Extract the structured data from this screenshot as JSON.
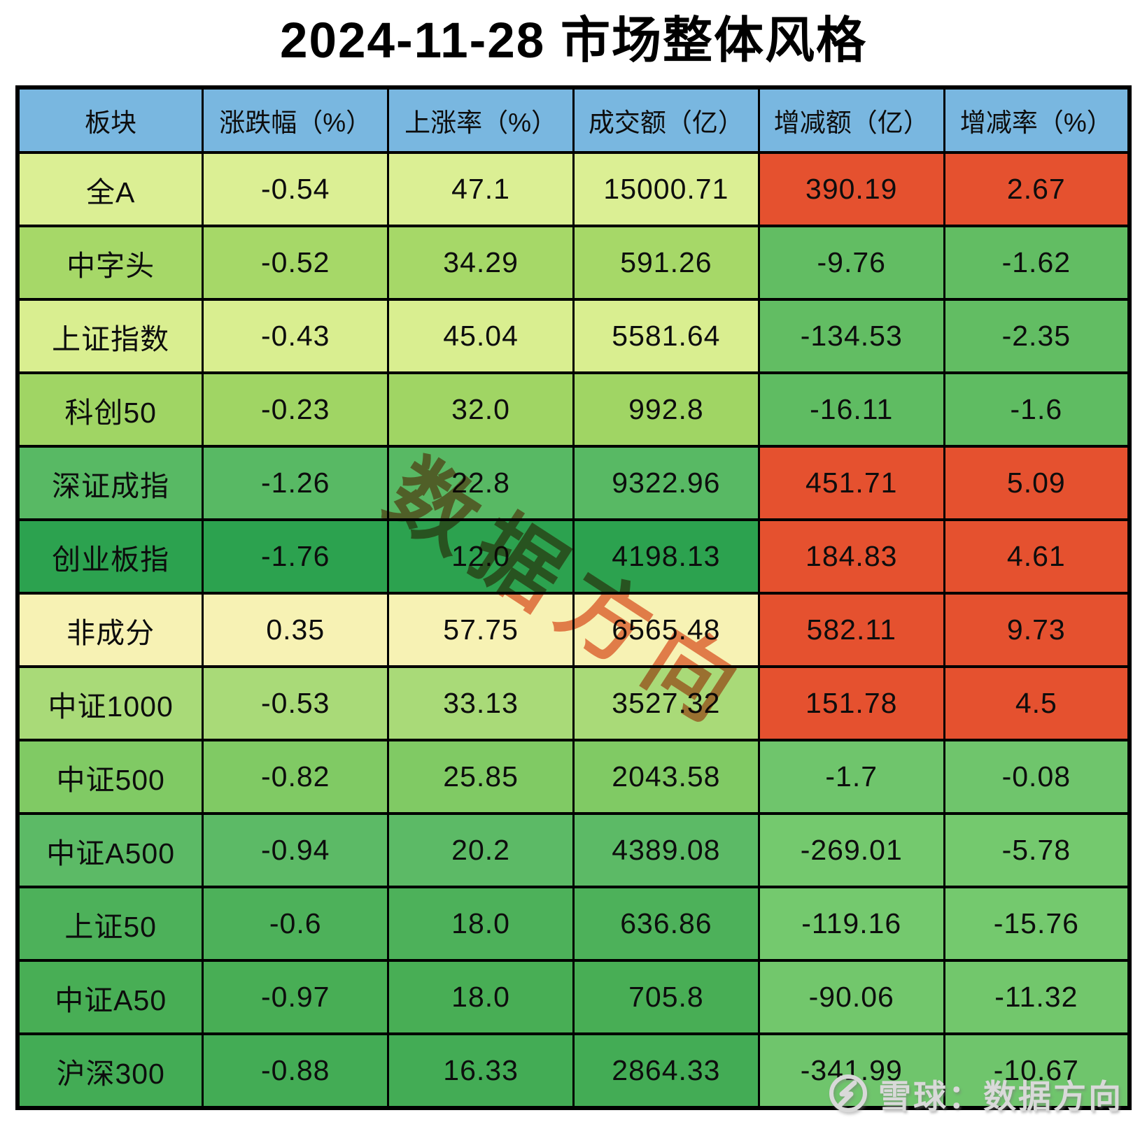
{
  "title": "2024-11-28 市场整体风格",
  "watermark": {
    "text": "数据方向",
    "color": "#e2603a"
  },
  "footer": {
    "icon": "xueqiu-snowball-icon",
    "text": "雪球：数据方向",
    "color": "#d9d9d9"
  },
  "colors": {
    "header_bg": "#79b7e0",
    "border": "#000000",
    "positive_delta_bg": "#e5512f",
    "title_text": "#000000",
    "cell_text": "#0d0d0d"
  },
  "chart_data": {
    "type": "table",
    "title": "2024-11-28 市场整体风格",
    "columns": [
      "板块",
      "涨跌幅（%）",
      "上涨率（%）",
      "成交额（亿）",
      "增减额（亿）",
      "增减率（%）"
    ],
    "rows": [
      {
        "name": "全A",
        "chg": "-0.54",
        "up_rate": "47.1",
        "turnover": "15000.71",
        "delta": "390.19",
        "delta_rate": "2.67",
        "row_color": "#dbef94",
        "delta_color": "#e5512f"
      },
      {
        "name": "中字头",
        "chg": "-0.52",
        "up_rate": "34.29",
        "turnover": "591.26",
        "delta": "-9.76",
        "delta_rate": "-1.62",
        "row_color": "#a6d868",
        "delta_color": "#62bd63"
      },
      {
        "name": "上证指数",
        "chg": "-0.43",
        "up_rate": "45.04",
        "turnover": "5581.64",
        "delta": "-134.53",
        "delta_rate": "-2.35",
        "row_color": "#d9ee90",
        "delta_color": "#62bd63"
      },
      {
        "name": "科创50",
        "chg": "-0.23",
        "up_rate": "32.0",
        "turnover": "992.8",
        "delta": "-16.11",
        "delta_rate": "-1.6",
        "row_color": "#a0d564",
        "delta_color": "#5fbc62"
      },
      {
        "name": "深证成指",
        "chg": "-1.26",
        "up_rate": "22.8",
        "turnover": "9322.96",
        "delta": "451.71",
        "delta_rate": "5.09",
        "row_color": "#58b964",
        "delta_color": "#e5512f"
      },
      {
        "name": "创业板指",
        "chg": "-1.76",
        "up_rate": "12.0",
        "turnover": "4198.13",
        "delta": "184.83",
        "delta_rate": "4.61",
        "row_color": "#2ca24f",
        "delta_color": "#e5512f"
      },
      {
        "name": "非成分",
        "chg": "0.35",
        "up_rate": "57.75",
        "turnover": "6565.48",
        "delta": "582.11",
        "delta_rate": "9.73",
        "row_color": "#f7f2b4",
        "delta_color": "#e5512f"
      },
      {
        "name": "中证1000",
        "chg": "-0.53",
        "up_rate": "33.13",
        "turnover": "3527.32",
        "delta": "151.78",
        "delta_rate": "4.5",
        "row_color": "#a9da78",
        "delta_color": "#e5512f"
      },
      {
        "name": "中证500",
        "chg": "-0.82",
        "up_rate": "25.85",
        "turnover": "2043.58",
        "delta": "-1.7",
        "delta_rate": "-0.08",
        "row_color": "#80ca64",
        "delta_color": "#6fc56c"
      },
      {
        "name": "中证A500",
        "chg": "-0.94",
        "up_rate": "20.2",
        "turnover": "4389.08",
        "delta": "-269.01",
        "delta_rate": "-5.78",
        "row_color": "#5cba66",
        "delta_color": "#74c96e"
      },
      {
        "name": "上证50",
        "chg": "-0.6",
        "up_rate": "18.0",
        "turnover": "636.86",
        "delta": "-119.16",
        "delta_rate": "-15.76",
        "row_color": "#4db15a",
        "delta_color": "#74c96e"
      },
      {
        "name": "中证A50",
        "chg": "-0.97",
        "up_rate": "18.0",
        "turnover": "705.8",
        "delta": "-90.06",
        "delta_rate": "-11.32",
        "row_color": "#48ae55",
        "delta_color": "#72c76c"
      },
      {
        "name": "沪深300",
        "chg": "-0.88",
        "up_rate": "16.33",
        "turnover": "2864.33",
        "delta": "-341.99",
        "delta_rate": "-10.67",
        "row_color": "#43ac55",
        "delta_color": "#6fc56c"
      }
    ]
  }
}
